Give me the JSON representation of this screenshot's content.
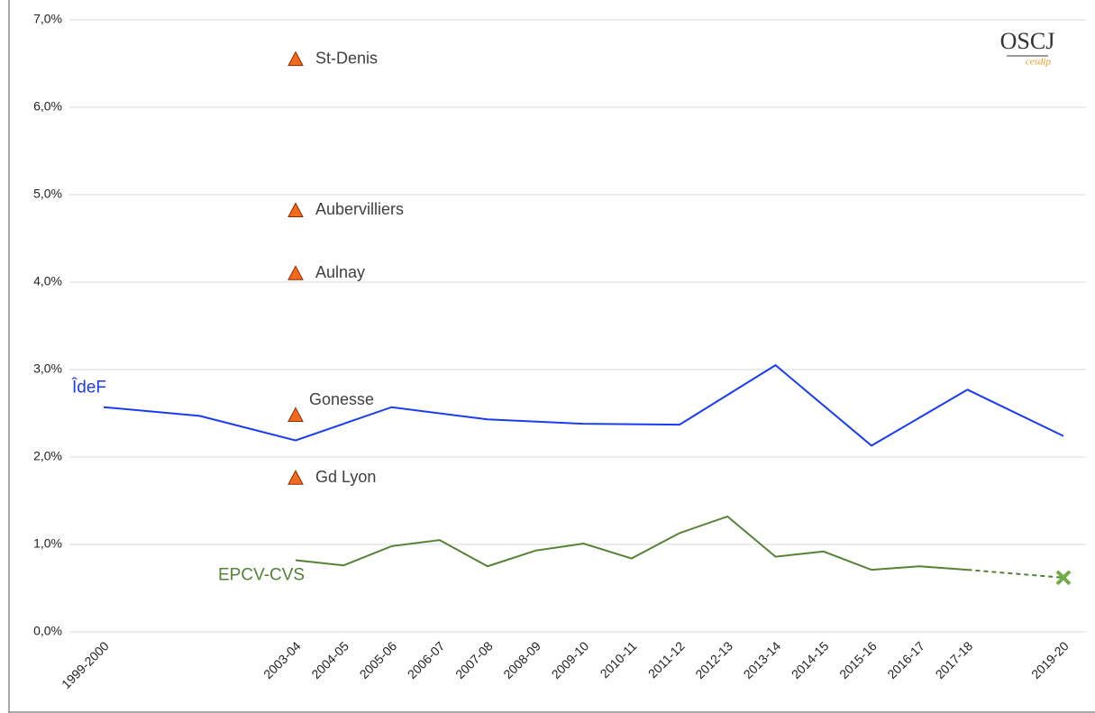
{
  "chart_data": {
    "type": "line",
    "categories": [
      "1999-2000",
      null,
      null,
      null,
      "2003-04",
      "2004-05",
      "2005-06",
      "2006-07",
      "2007-08",
      "2008-09",
      "2009-10",
      "2010-11",
      "2011-12",
      "2012-13",
      "2013-14",
      "2014-15",
      "2015-16",
      "2016-17",
      "2017-18",
      null,
      "2019-20"
    ],
    "ylim": [
      0,
      7
    ],
    "yticks": [
      {
        "value": 0,
        "label": "0,0%"
      },
      {
        "value": 1,
        "label": "1,0%"
      },
      {
        "value": 2,
        "label": "2,0%"
      },
      {
        "value": 3,
        "label": "3,0%"
      },
      {
        "value": 4,
        "label": "4,0%"
      },
      {
        "value": 5,
        "label": "5,0%"
      },
      {
        "value": 6,
        "label": "6,0%"
      },
      {
        "value": 7,
        "label": "7,0%"
      }
    ],
    "grid": true,
    "connect_gaps": true,
    "series": [
      {
        "name": "ÎdeF",
        "color": "#1a3cf0",
        "values": [
          2.57,
          null,
          2.47,
          null,
          2.19,
          null,
          2.57,
          null,
          2.43,
          null,
          2.38,
          null,
          2.37,
          null,
          3.05,
          null,
          2.13,
          null,
          2.77,
          null,
          2.24
        ]
      },
      {
        "name": "EPCV-CVS",
        "color": "#548235",
        "last_segment_dashed": true,
        "last_marker": "x",
        "last_marker_color": "#70ad47",
        "values": [
          null,
          null,
          null,
          null,
          0.82,
          0.76,
          0.98,
          1.05,
          0.75,
          0.93,
          1.01,
          0.84,
          1.13,
          1.32,
          0.86,
          0.92,
          0.71,
          0.75,
          0.71,
          null,
          0.62
        ]
      }
    ],
    "points": {
      "at": "2003-04",
      "color": "#f46a1c",
      "marker": "triangle",
      "items": [
        {
          "label": "St-Denis",
          "value": 6.55
        },
        {
          "label": "Aubervilliers",
          "value": 4.82
        },
        {
          "label": "Aulnay",
          "value": 4.1
        },
        {
          "label": "Gonesse",
          "value": 2.48
        },
        {
          "label": "Gd Lyon",
          "value": 1.76
        }
      ]
    },
    "logo": {
      "title": "OSCJ",
      "subtitle": "cesdip"
    }
  }
}
